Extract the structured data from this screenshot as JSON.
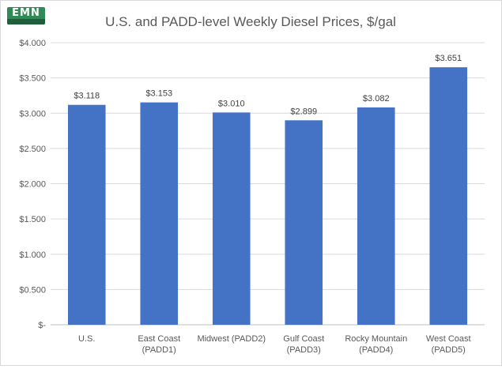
{
  "chart_data": {
    "type": "bar",
    "title": "U.S. and PADD-level Weekly Diesel Prices, $/gal",
    "categories": [
      [
        "U.S."
      ],
      [
        "East Coast",
        "(PADD1)"
      ],
      [
        "Midwest (PADD2)"
      ],
      [
        "Gulf Coast",
        "(PADD3)"
      ],
      [
        "Rocky Mountain",
        "(PADD4)"
      ],
      [
        "West Coast",
        "(PADD5)"
      ]
    ],
    "values": [
      3.118,
      3.153,
      3.01,
      2.899,
      3.082,
      3.651
    ],
    "value_labels": [
      "$3.118",
      "$3.153",
      "$3.010",
      "$2.899",
      "$3.082",
      "$3.651"
    ],
    "ylim": [
      0,
      4
    ],
    "yticks": [
      0,
      0.5,
      1,
      1.5,
      2,
      2.5,
      3,
      3.5,
      4
    ],
    "ytick_labels": [
      "$-",
      "$0.500",
      "$1.000",
      "$1.500",
      "$2.000",
      "$2.500",
      "$3.000",
      "$3.500",
      "$4.000"
    ],
    "grid": true,
    "legend": "none",
    "bar_color": "#4472c4"
  },
  "logo": {
    "mark": "EMN",
    "icon": "publisher-logo"
  }
}
